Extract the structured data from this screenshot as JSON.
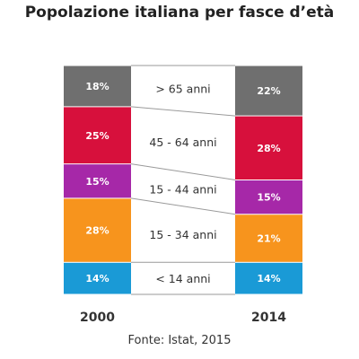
{
  "chart_data": {
    "type": "bar",
    "title": "Popolazione italiana per fasce d’età",
    "source": "Fonte: Istat, 2015",
    "categories": [
      "2000",
      "2014"
    ],
    "series": [
      {
        "name": "< 14 anni",
        "values": [
          14,
          14
        ],
        "labels": [
          "14%",
          "14%"
        ],
        "color": "#1a9ad6"
      },
      {
        "name": "15 - 34 anni",
        "values": [
          28,
          21
        ],
        "labels": [
          "28%",
          "21%"
        ],
        "color": "#f7941d"
      },
      {
        "name": "15 - 44 anni",
        "values": [
          15,
          15
        ],
        "labels": [
          "15%",
          "15%"
        ],
        "color": "#a628a8"
      },
      {
        "name": "45 - 64 anni",
        "values": [
          25,
          28
        ],
        "labels": [
          "25%",
          "28%"
        ],
        "color": "#d7103c"
      },
      {
        "name": "> 65 anni",
        "values": [
          18,
          22
        ],
        "labels": [
          "18%",
          "22%"
        ],
        "color": "#6f6f6f"
      }
    ],
    "stacked": true,
    "ylim": [
      0,
      100
    ]
  }
}
